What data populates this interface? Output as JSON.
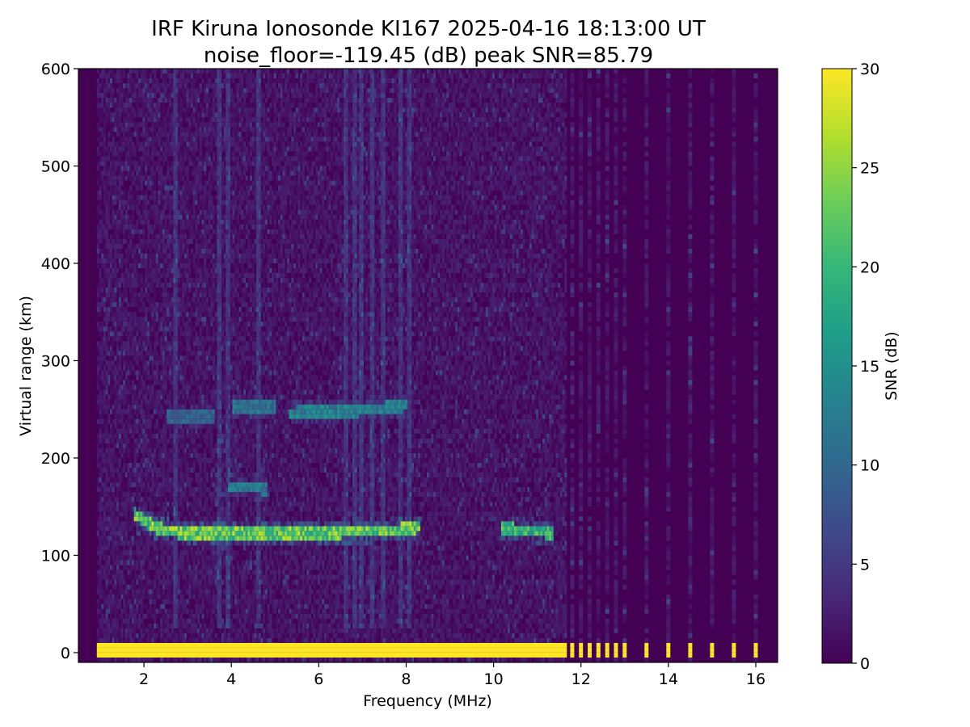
{
  "chart_data": {
    "type": "heatmap",
    "title": "IRF Kiruna Ionosonde KI167 2025-04-16 18:13:00  UT",
    "subtitle": "noise_floor=-119.45 (dB) peak SNR=85.79",
    "xlabel": "Frequency (MHz)",
    "ylabel": "Virtual range (km)",
    "colorbar_label": "SNR (dB)",
    "xlim": [
      0.5,
      16.5
    ],
    "ylim": [
      -10,
      600
    ],
    "clim": [
      0,
      30
    ],
    "colormap": "viridis",
    "x_ticks": [
      2,
      4,
      6,
      8,
      10,
      12,
      14,
      16
    ],
    "x_tick_labels": [
      "2",
      "4",
      "6",
      "8",
      "10",
      "12",
      "14",
      "16"
    ],
    "y_ticks": [
      0,
      100,
      200,
      300,
      400,
      500,
      600
    ],
    "y_tick_labels": [
      "0",
      "100",
      "200",
      "300",
      "400",
      "500",
      "600"
    ],
    "cbar_ticks": [
      0,
      5,
      10,
      15,
      20,
      25,
      30
    ],
    "cbar_tick_labels": [
      "0",
      "5",
      "10",
      "15",
      "20",
      "25",
      "30"
    ],
    "freq_range_continuous": [
      0.95,
      11.7
    ],
    "discrete_freqs_mhz": [
      11.8,
      12.0,
      12.2,
      12.4,
      12.6,
      12.8,
      13.0,
      13.5,
      14.0,
      14.5,
      15.0,
      15.5,
      16.0
    ],
    "noise_level_db": 1.5,
    "traces": [
      {
        "layer": "ground-echo",
        "freq_start": 0.95,
        "freq_end": 16.05,
        "range_km": 0,
        "thickness_km": 14,
        "snr_db": 30
      },
      {
        "layer": "E-trace",
        "points": [
          [
            1.8,
            142
          ],
          [
            2.0,
            136
          ],
          [
            2.3,
            128
          ],
          [
            2.7,
            124
          ],
          [
            3.0,
            122
          ],
          [
            4.0,
            122
          ],
          [
            5.0,
            122
          ],
          [
            6.0,
            123
          ],
          [
            7.0,
            124
          ],
          [
            7.8,
            126
          ],
          [
            8.3,
            129
          ]
        ],
        "snr_db": 28
      },
      {
        "layer": "E-echo-10.5",
        "points": [
          [
            10.2,
            128
          ],
          [
            10.6,
            126
          ],
          [
            11.0,
            124
          ],
          [
            11.4,
            123
          ]
        ],
        "snr_db": 24
      },
      {
        "layer": "Es-multiple-240",
        "points": [
          [
            2.5,
            242
          ],
          [
            3.0,
            243
          ],
          [
            3.6,
            243
          ]
        ],
        "snr_db": 12
      },
      {
        "layer": "Es-multiple-250",
        "points": [
          [
            4.0,
            252
          ],
          [
            4.5,
            253
          ],
          [
            5.0,
            252
          ]
        ],
        "snr_db": 14
      },
      {
        "layer": "Es-multiple-247",
        "points": [
          [
            5.3,
            246
          ],
          [
            6.0,
            248
          ],
          [
            6.8,
            248
          ],
          [
            7.6,
            252
          ],
          [
            8.0,
            254
          ]
        ],
        "snr_db": 16
      },
      {
        "layer": "patch-170",
        "points": [
          [
            3.9,
            171
          ],
          [
            4.3,
            170
          ],
          [
            4.8,
            168
          ]
        ],
        "snr_db": 15
      }
    ],
    "vertical_streaks_mhz": [
      2.7,
      3.7,
      3.9,
      4.6,
      6.6,
      6.8,
      6.95,
      7.2,
      7.45,
      7.85,
      8.05
    ]
  }
}
